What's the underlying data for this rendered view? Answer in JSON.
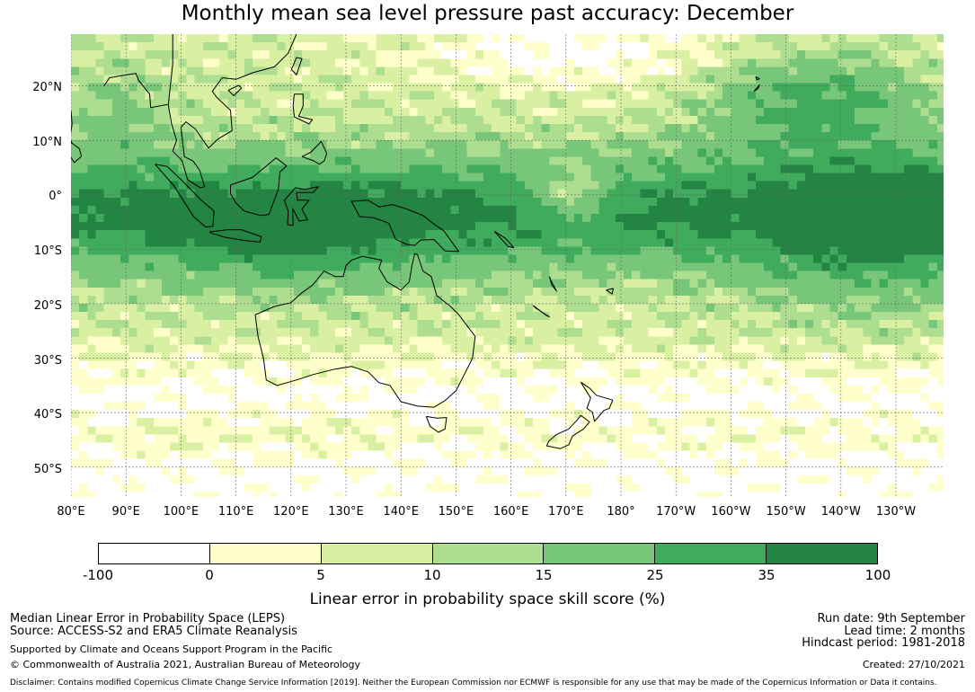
{
  "title": "Monthly mean sea level pressure past accuracy: December",
  "map": {
    "lat_labels": [
      "20°N",
      "10°N",
      "0°",
      "10°S",
      "20°S",
      "30°S",
      "40°S",
      "50°S"
    ],
    "lon_labels": [
      "80°E",
      "90°E",
      "100°E",
      "110°E",
      "120°E",
      "130°E",
      "140°E",
      "150°E",
      "160°E",
      "170°E",
      "180°",
      "170°W",
      "160°W",
      "150°W",
      "140°W",
      "130°W"
    ],
    "extent": {
      "lon_min": 80,
      "lon_max": 238.5,
      "lat_min": -55.5,
      "lat_max": 29.5
    },
    "colors": {
      "-100-0": "#ffffff",
      "0-5": "#ffffcc",
      "5-10": "#d9f0a3",
      "10-15": "#addd8e",
      "15-25": "#78c679",
      "25-35": "#41ab5d",
      "35-100": "#238443"
    }
  },
  "colorbar": {
    "ticks": [
      "-100",
      "0",
      "5",
      "10",
      "15",
      "25",
      "35",
      "100"
    ],
    "colors": [
      "#ffffff",
      "#ffffcc",
      "#d9f0a3",
      "#addd8e",
      "#78c679",
      "#41ab5d",
      "#238443"
    ],
    "label": "Linear error in probability space skill score (%)"
  },
  "footer": {
    "line1": "Median Linear Error in Probability Space (LEPS)",
    "line2": "Source: ACCESS-S2 and ERA5 Climate Reanalysis",
    "line3": "Supported by Climate and Oceans Support Program in the Pacific",
    "line4": "© Commonwealth of Australia 2021, Australian Bureau of Meteorology",
    "run_date": "Run date: 9th September",
    "lead_time": "Lead time: 2 months",
    "hindcast": "Hindcast period: 1981-2018",
    "created": "Created: 27/10/2021",
    "disclaimer": "Disclaimer: Contains modified Copernicus Climate Change Service Information [2019]. Neither the European Commission nor ECMWF is responsible for any use that may be made of the Copernicus Information or Data it contains."
  }
}
